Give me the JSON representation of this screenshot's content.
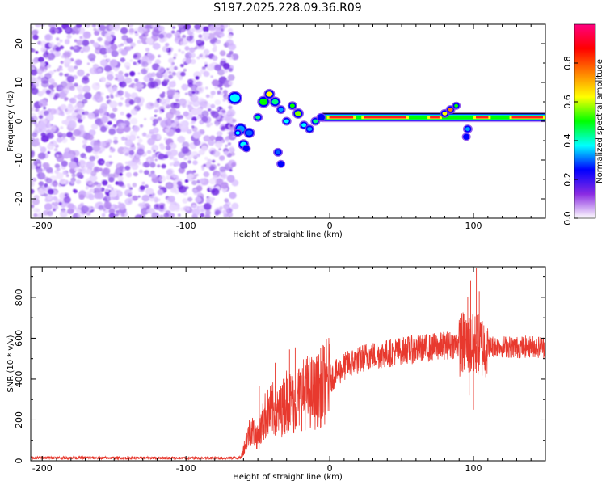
{
  "title": "S197.2025.228.09.36.R09",
  "chart_data": [
    {
      "type": "heatmap",
      "name": "spectrogram",
      "xlabel": "Height of straight line (km)",
      "ylabel": "Frequency (Hz)",
      "xlim": [
        -208,
        150
      ],
      "ylim": [
        -25,
        25
      ],
      "xticks": [
        -200,
        -100,
        0,
        100
      ],
      "xtick_labels": [
        "-200",
        "-100",
        "0",
        "100"
      ],
      "yticks": [
        -20,
        -10,
        0,
        10,
        20
      ],
      "ytick_labels": [
        "-20",
        "-10",
        "0",
        "10",
        "20"
      ],
      "ridge_frequency_hz": 1,
      "noise_region_end_km": -68,
      "colorbar": {
        "label": "Normalized spectral amplitude",
        "range": [
          0,
          1
        ],
        "ticks": [
          0.0,
          0.2,
          0.4,
          0.6,
          0.8
        ],
        "tick_labels": [
          "0.0",
          "0.2",
          "0.4",
          "0.6",
          "0.8"
        ],
        "colors": [
          "#ffffff",
          "#8a2be2",
          "#0000ff",
          "#00ffff",
          "#00ff00",
          "#ffff00",
          "#ff8000",
          "#ff0000",
          "#ff0080"
        ]
      }
    },
    {
      "type": "line",
      "name": "snr",
      "xlabel": "Height of straight line (km)",
      "ylabel": "SNR (10 * v/v)",
      "xlim": [
        -208,
        150
      ],
      "ylim": [
        0,
        950
      ],
      "xticks": [
        -200,
        -100,
        0,
        100
      ],
      "xtick_labels": [
        "-200",
        "-100",
        "0",
        "100"
      ],
      "yticks": [
        0,
        200,
        400,
        600,
        800
      ],
      "ytick_labels": [
        "0",
        "200",
        "400",
        "600",
        "800"
      ],
      "color": "#e8392e",
      "envelope": {
        "x": [
          -208,
          -180,
          -150,
          -120,
          -100,
          -80,
          -62,
          -55,
          -50,
          -45,
          -40,
          -35,
          -30,
          -25,
          -20,
          -15,
          -10,
          -5,
          0,
          5,
          10,
          15,
          20,
          25,
          30,
          40,
          50,
          60,
          70,
          80,
          90,
          95,
          98,
          100,
          102,
          104,
          106,
          110,
          120,
          130,
          140,
          150
        ],
        "y": [
          15,
          15,
          14,
          14,
          13,
          13,
          15,
          160,
          110,
          220,
          250,
          230,
          300,
          280,
          320,
          340,
          330,
          370,
          400,
          430,
          460,
          480,
          490,
          510,
          515,
          525,
          540,
          545,
          555,
          565,
          570,
          580,
          560,
          560,
          570,
          565,
          560,
          560,
          560,
          555,
          560,
          555
        ]
      },
      "spikes": [
        {
          "x": -49,
          "y": 365
        },
        {
          "x": -38,
          "y": 480
        },
        {
          "x": -33,
          "y": 370
        },
        {
          "x": -28,
          "y": 545
        },
        {
          "x": -24,
          "y": 555
        },
        {
          "x": 96,
          "y": 800
        },
        {
          "x": 98,
          "y": 880
        },
        {
          "x": 102,
          "y": 945
        },
        {
          "x": 104,
          "y": 830
        },
        {
          "x": 100,
          "y": 250
        },
        {
          "x": 97,
          "y": 320
        }
      ]
    }
  ]
}
